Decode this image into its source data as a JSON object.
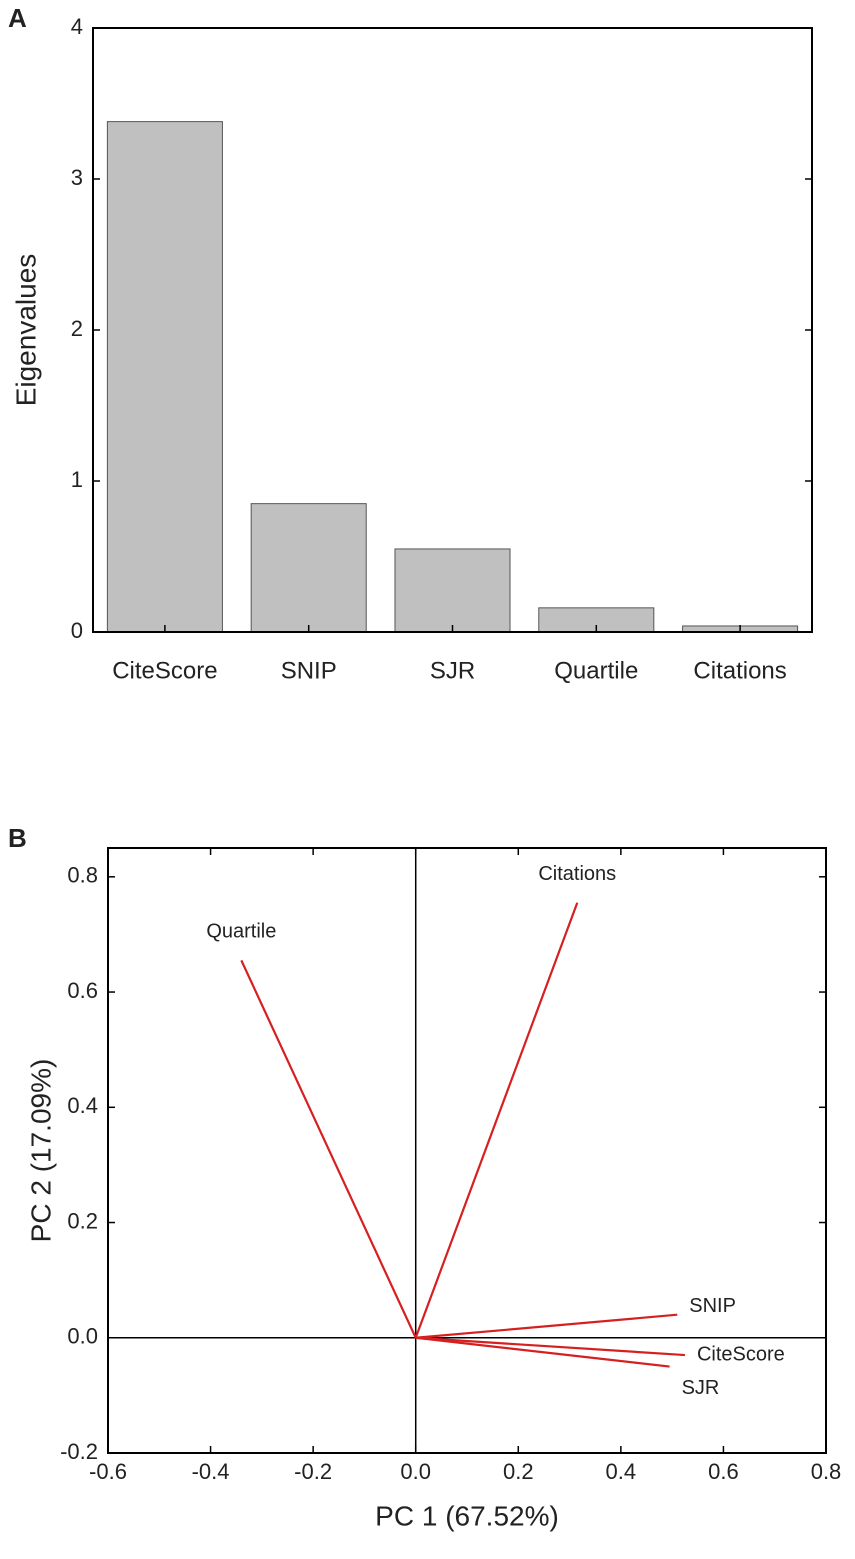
{
  "chart_data": [
    {
      "type": "bar",
      "label": "A",
      "ylabel": "Eigenvalues",
      "categories": [
        "CiteScore",
        "SNIP",
        "SJR",
        "Quartile",
        "Citations"
      ],
      "values": [
        3.38,
        0.85,
        0.55,
        0.16,
        0.04
      ],
      "color": "#c0c0c0",
      "ylim": [
        0,
        4
      ],
      "yticks": [
        0,
        1,
        2,
        3,
        4
      ]
    },
    {
      "type": "vector",
      "label": "B",
      "xlabel": "PC 1 (67.52%)",
      "ylabel": "PC 2 (17.09%)",
      "names": [
        "Quartile",
        "Citations",
        "SNIP",
        "CiteScore",
        "SJR"
      ],
      "x": [
        -0.34,
        0.315,
        0.51,
        0.525,
        0.495
      ],
      "y": [
        0.655,
        0.755,
        0.04,
        -0.03,
        -0.05
      ],
      "color": "#d62020",
      "xlim": [
        -0.6,
        0.8
      ],
      "xticks": [
        -0.6,
        -0.4,
        -0.2,
        {
          "value": 0,
          "label": "0.0"
        },
        0.2,
        0.4,
        0.6,
        0.8
      ],
      "ylim": [
        -0.2,
        0.85
      ],
      "yticks": [
        -0.2,
        {
          "value": 0,
          "label": "0.0"
        },
        0.2,
        0.4,
        0.6,
        0.8
      ]
    }
  ]
}
